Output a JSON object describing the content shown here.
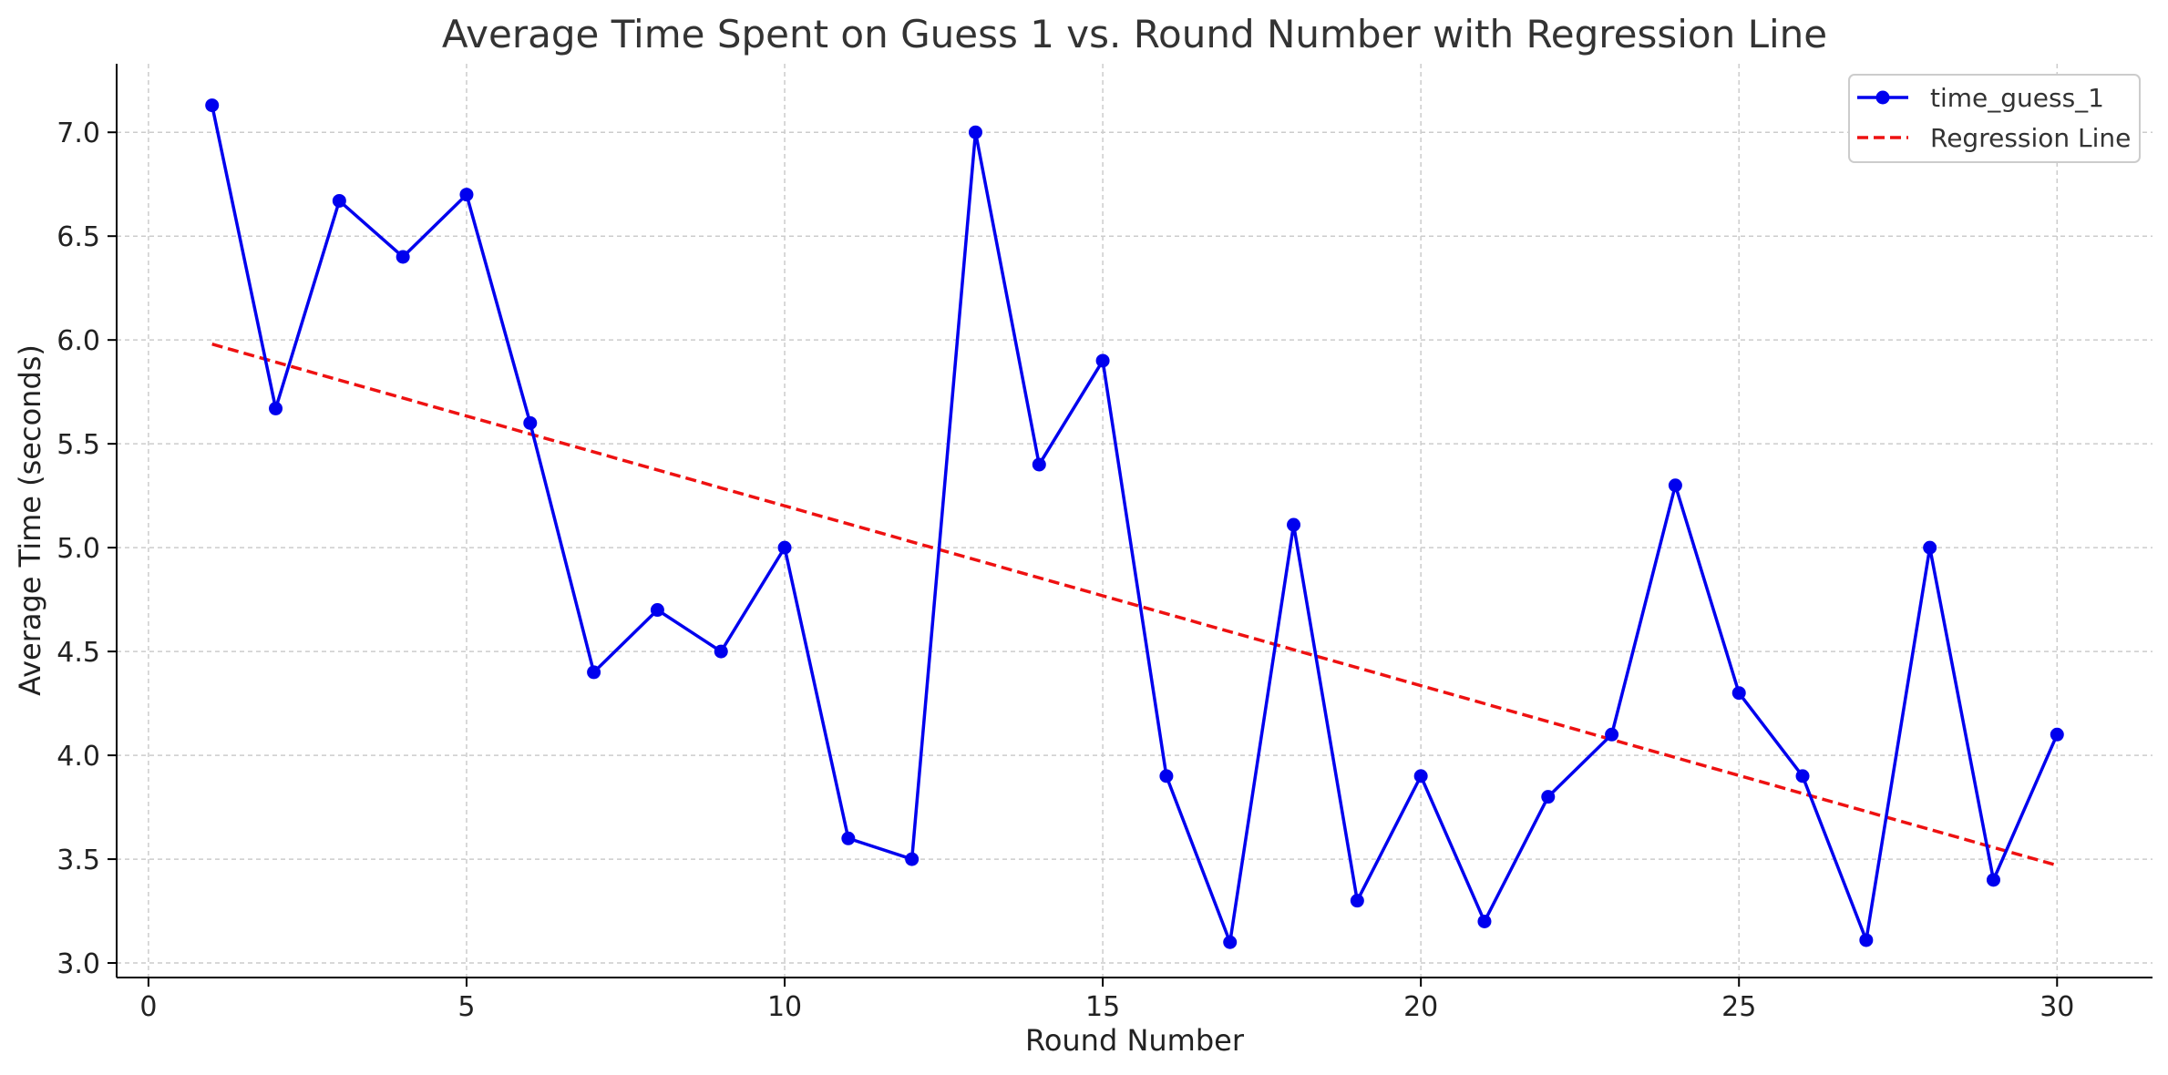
{
  "chart_data": {
    "type": "line",
    "title": "Average Time Spent on Guess 1 vs. Round Number with Regression Line",
    "xlabel": "Round Number",
    "ylabel": "Average Time (seconds)",
    "xlim": [
      -0.5,
      31.5
    ],
    "ylim": [
      2.93,
      7.33
    ],
    "xticks": [
      0,
      5,
      10,
      15,
      20,
      25,
      30
    ],
    "xtick_labels": [
      "0",
      "5",
      "10",
      "15",
      "20",
      "25",
      "30"
    ],
    "yticks": [
      3.0,
      3.5,
      4.0,
      4.5,
      5.0,
      5.5,
      6.0,
      6.5,
      7.0
    ],
    "ytick_labels": [
      "3.0",
      "3.5",
      "4.0",
      "4.5",
      "5.0",
      "5.5",
      "6.0",
      "6.5",
      "7.0"
    ],
    "grid": true,
    "legend_position": "top-right",
    "x": [
      1,
      2,
      3,
      4,
      5,
      6,
      7,
      8,
      9,
      10,
      11,
      12,
      13,
      14,
      15,
      16,
      17,
      18,
      19,
      20,
      21,
      22,
      23,
      24,
      25,
      26,
      27,
      28,
      29,
      30
    ],
    "series": [
      {
        "name": "time_guess_1",
        "style": "solid-marker",
        "color": "#0000ee",
        "values": [
          7.13,
          5.67,
          6.67,
          6.4,
          6.7,
          5.6,
          4.4,
          4.7,
          4.5,
          5.0,
          3.6,
          3.5,
          7.0,
          5.4,
          5.9,
          3.9,
          3.1,
          5.11,
          3.3,
          3.9,
          3.2,
          3.8,
          4.1,
          5.3,
          4.3,
          3.9,
          3.11,
          5.0,
          3.4,
          4.1
        ]
      },
      {
        "name": "Regression Line",
        "style": "dashed",
        "color": "#ee1111",
        "x": [
          1,
          30
        ],
        "values": [
          5.98,
          3.47
        ]
      }
    ]
  }
}
